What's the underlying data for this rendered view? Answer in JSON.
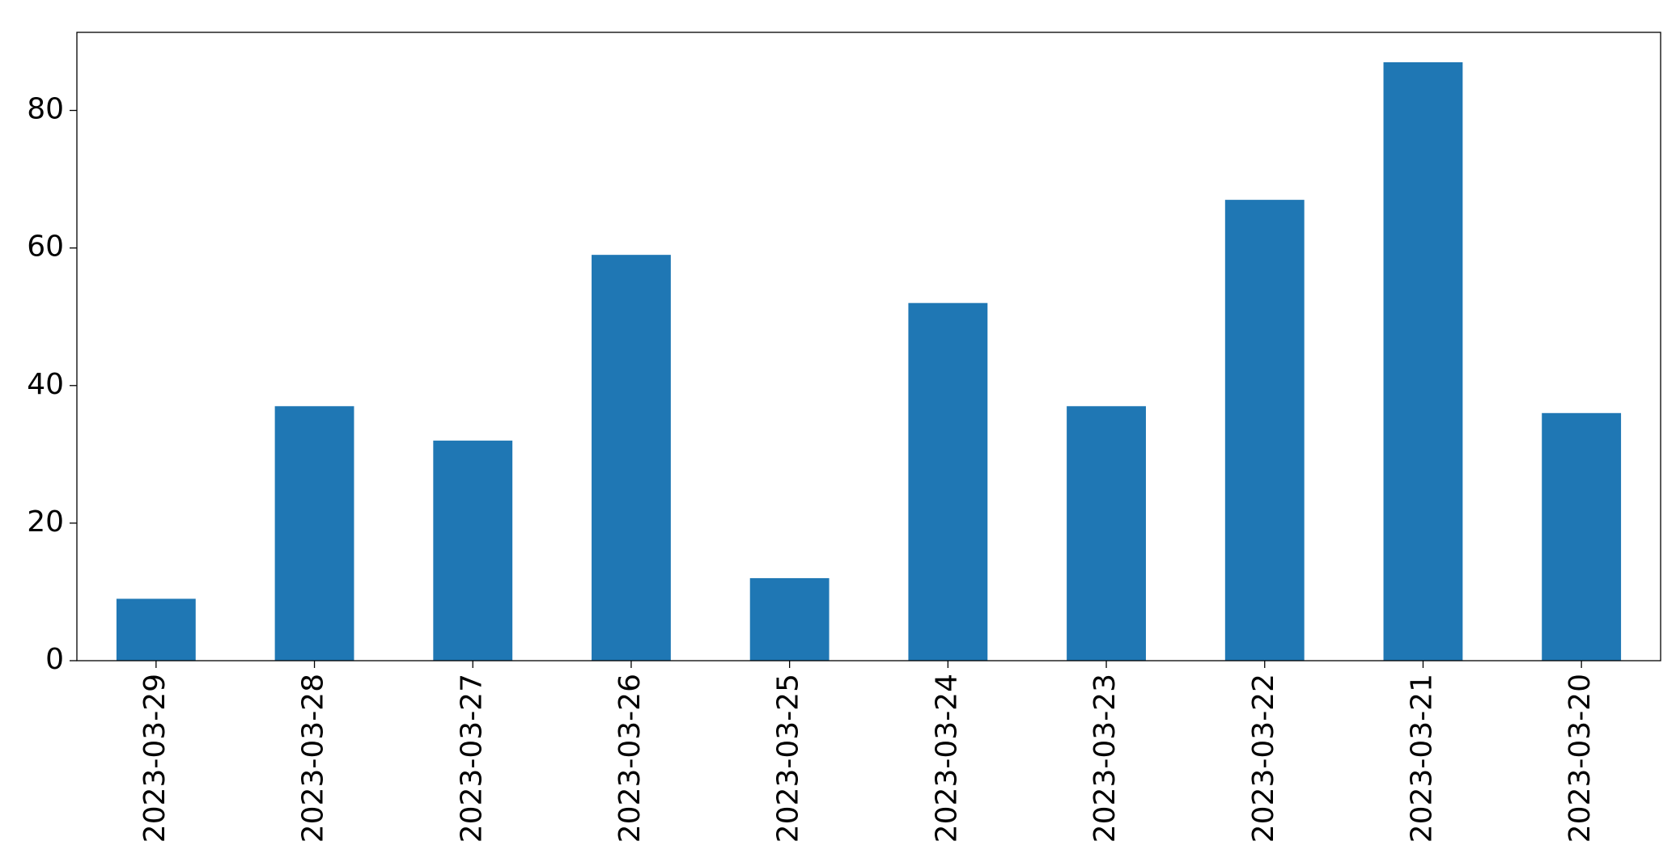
{
  "chart_data": {
    "type": "bar",
    "categories": [
      "2023-03-29",
      "2023-03-28",
      "2023-03-27",
      "2023-03-26",
      "2023-03-25",
      "2023-03-24",
      "2023-03-23",
      "2023-03-22",
      "2023-03-21",
      "2023-03-20"
    ],
    "values": [
      9,
      37,
      32,
      59,
      12,
      52,
      37,
      67,
      87,
      36
    ],
    "color": "#1f77b4",
    "ylim": [
      0,
      91.35
    ],
    "yticks": [
      0,
      20,
      40,
      60,
      80
    ],
    "grid": false
  }
}
